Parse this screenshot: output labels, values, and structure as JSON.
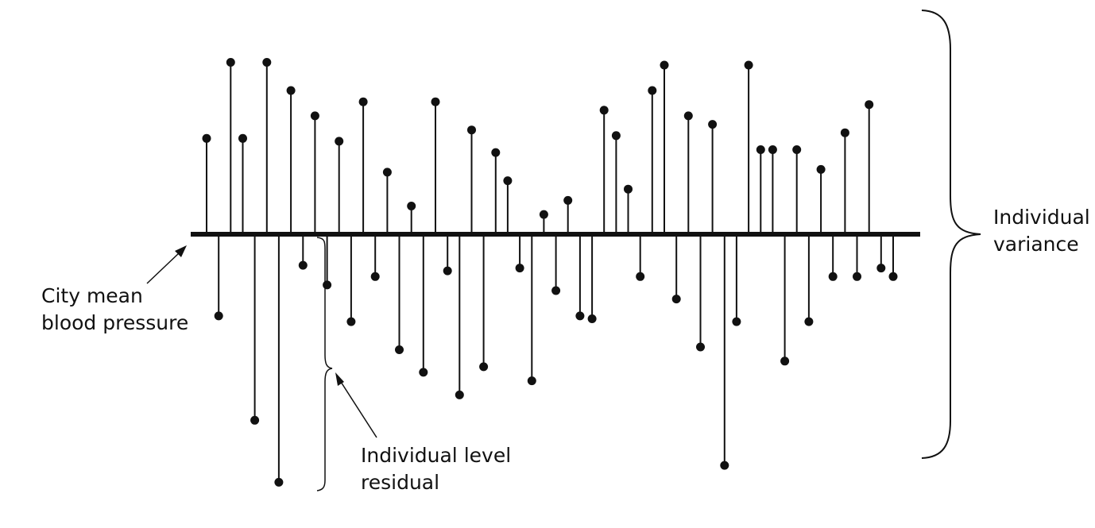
{
  "labels": {
    "mean_line": [
      "City mean",
      "blood pressure"
    ],
    "residual": [
      "Individual level",
      "residual"
    ],
    "variance": [
      "Individual",
      "variance"
    ]
  },
  "colors": {
    "ink": "#111111",
    "background": "#ffffff"
  },
  "chart_data": {
    "type": "scatter",
    "baseline": 0,
    "series": [
      {
        "points": [
          {
            "x": 1,
            "y": 34
          },
          {
            "x": 2,
            "y": -29
          },
          {
            "x": 3,
            "y": 61
          },
          {
            "x": 4,
            "y": 34
          },
          {
            "x": 5,
            "y": -66
          },
          {
            "x": 6,
            "y": 61
          },
          {
            "x": 7,
            "y": -88
          },
          {
            "x": 8,
            "y": 51
          },
          {
            "x": 9,
            "y": -11
          },
          {
            "x": 10,
            "y": 42
          },
          {
            "x": 11,
            "y": -18
          },
          {
            "x": 12,
            "y": 33
          },
          {
            "x": 13,
            "y": -31
          },
          {
            "x": 14,
            "y": 47
          },
          {
            "x": 15,
            "y": -15
          },
          {
            "x": 16,
            "y": 22
          },
          {
            "x": 17,
            "y": -41
          },
          {
            "x": 18,
            "y": 10
          },
          {
            "x": 19,
            "y": -49
          },
          {
            "x": 20,
            "y": 47
          },
          {
            "x": 21,
            "y": -13
          },
          {
            "x": 22,
            "y": -57
          },
          {
            "x": 23,
            "y": 37
          },
          {
            "x": 24,
            "y": -47
          },
          {
            "x": 25,
            "y": 29
          },
          {
            "x": 26,
            "y": 19
          },
          {
            "x": 27,
            "y": -12
          },
          {
            "x": 28,
            "y": -52
          },
          {
            "x": 29,
            "y": 7
          },
          {
            "x": 30,
            "y": -20
          },
          {
            "x": 31,
            "y": 12
          },
          {
            "x": 32,
            "y": -29
          },
          {
            "x": 33,
            "y": -30
          },
          {
            "x": 34,
            "y": 44
          },
          {
            "x": 35,
            "y": 35
          },
          {
            "x": 36,
            "y": 16
          },
          {
            "x": 37,
            "y": -15
          },
          {
            "x": 38,
            "y": 51
          },
          {
            "x": 39,
            "y": 60
          },
          {
            "x": 40,
            "y": -23
          },
          {
            "x": 41,
            "y": 42
          },
          {
            "x": 42,
            "y": -40
          },
          {
            "x": 43,
            "y": 39
          },
          {
            "x": 44,
            "y": -82
          },
          {
            "x": 45,
            "y": -31
          },
          {
            "x": 46,
            "y": 60
          },
          {
            "x": 47,
            "y": 30
          },
          {
            "x": 48,
            "y": 30
          },
          {
            "x": 49,
            "y": -45
          },
          {
            "x": 50,
            "y": 30
          },
          {
            "x": 51,
            "y": -31
          },
          {
            "x": 52,
            "y": 23
          },
          {
            "x": 53,
            "y": -15
          },
          {
            "x": 54,
            "y": 36
          },
          {
            "x": 55,
            "y": -15
          },
          {
            "x": 56,
            "y": 46
          },
          {
            "x": 57,
            "y": -12
          },
          {
            "x": 58,
            "y": -15
          }
        ]
      }
    ]
  }
}
